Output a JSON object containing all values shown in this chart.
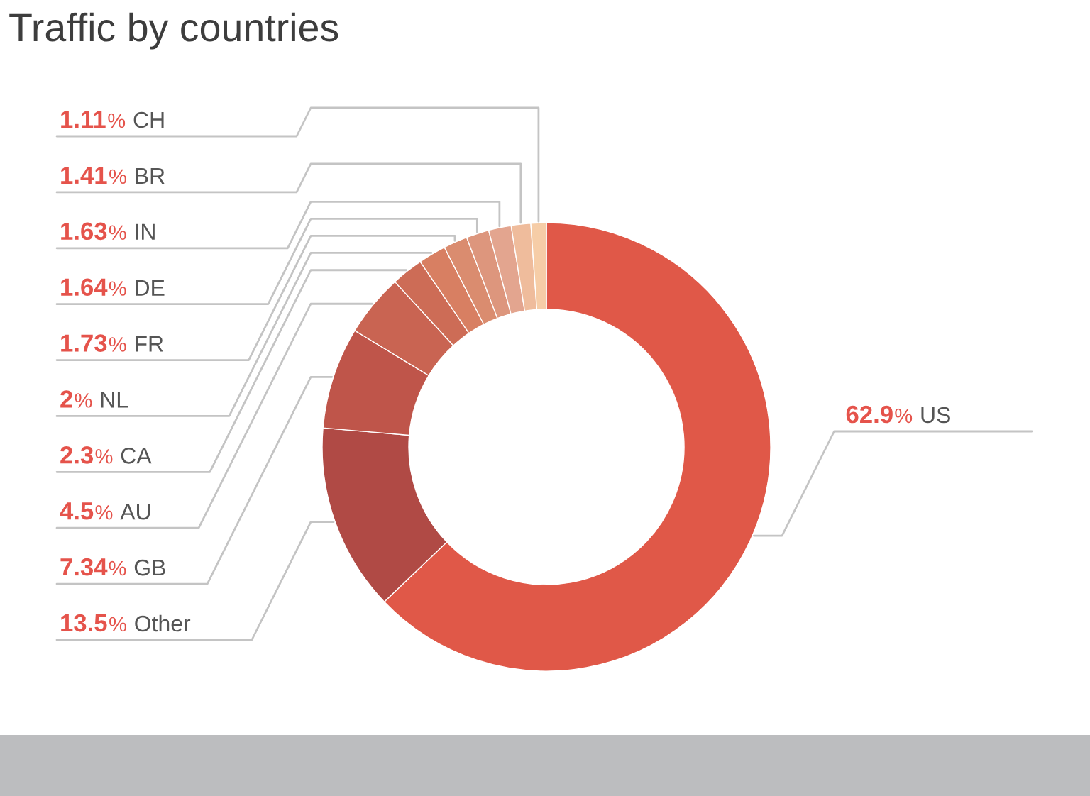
{
  "chart_data": {
    "type": "donut",
    "title": "Traffic by countries",
    "categories": [
      "US",
      "Other",
      "GB",
      "AU",
      "CA",
      "NL",
      "FR",
      "DE",
      "IN",
      "BR",
      "CH"
    ],
    "values": [
      62.9,
      13.5,
      7.34,
      4.5,
      2.3,
      2,
      1.73,
      1.64,
      1.63,
      1.41,
      1.11
    ],
    "colors": [
      "#e05848",
      "#b04a45",
      "#bf554a",
      "#c96452",
      "#cd6c56",
      "#d87f62",
      "#da8c6f",
      "#dd967d",
      "#e3a58f",
      "#efbc9c",
      "#f6cda7"
    ],
    "value_labels": [
      "62.9%",
      "13.5%",
      "7.34%",
      "4.5%",
      "2.3%",
      "2%",
      "1.73%",
      "1.64%",
      "1.63%",
      "1.41%",
      "1.11%"
    ]
  }
}
